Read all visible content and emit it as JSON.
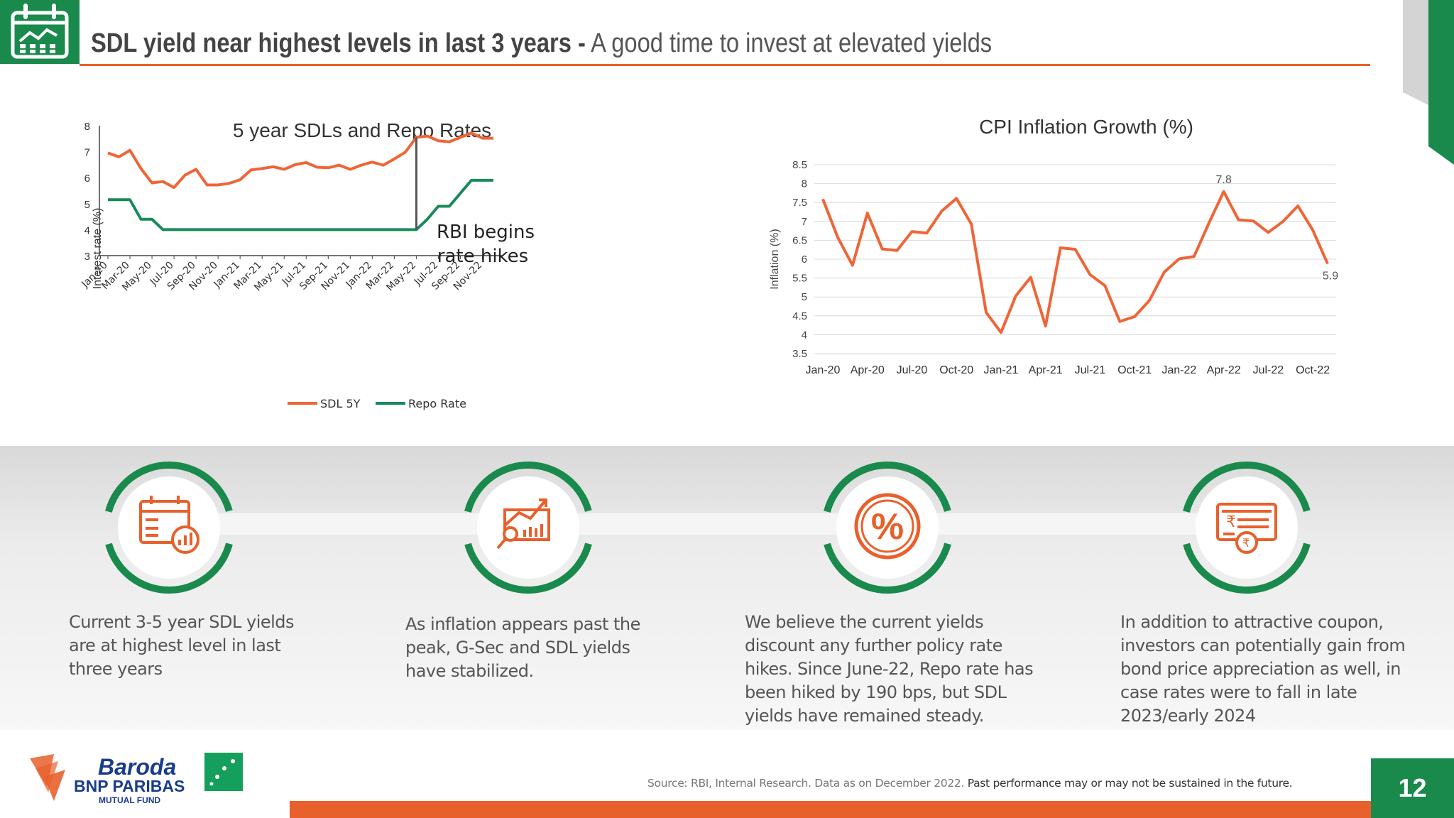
{
  "header": {
    "title_bold": "SDL yield near highest levels in last 3 years -",
    "title_light": "A good time to invest at elevated yields"
  },
  "colors": {
    "brand_green": "#1a8a4c",
    "brand_orange": "#e8602c"
  },
  "chart_data": [
    {
      "type": "line",
      "title": "5 year SDLs and Repo Rates",
      "ylabel": "Interest rate (%)",
      "xlabel": "",
      "ylim": [
        3,
        8
      ],
      "yticks": [
        3,
        4,
        5,
        6,
        7,
        8
      ],
      "x": [
        "Jan-20",
        "Feb-20",
        "Mar-20",
        "Apr-20",
        "May-20",
        "Jun-20",
        "Jul-20",
        "Aug-20",
        "Sep-20",
        "Oct-20",
        "Nov-20",
        "Dec-20",
        "Jan-21",
        "Feb-21",
        "Mar-21",
        "Apr-21",
        "May-21",
        "Jun-21",
        "Jul-21",
        "Aug-21",
        "Sep-21",
        "Oct-21",
        "Nov-21",
        "Dec-21",
        "Jan-22",
        "Feb-22",
        "Mar-22",
        "Apr-22",
        "May-22",
        "Jun-22",
        "Jul-22",
        "Aug-22",
        "Sep-22",
        "Oct-22",
        "Nov-22",
        "Dec-22"
      ],
      "xticks": [
        "Jan-20",
        "Mar-20",
        "May-20",
        "Jul-20",
        "Sep-20",
        "Nov-20",
        "Jan-21",
        "Mar-21",
        "May-21",
        "Jul-21",
        "Sep-21",
        "Nov-21",
        "Jan-22",
        "Mar-22",
        "May-22",
        "Jul-22",
        "Sep-22",
        "Nov-22"
      ],
      "series": [
        {
          "name": "SDL 5Y",
          "color": "#ef6537",
          "values": [
            6.95,
            6.8,
            7.05,
            6.35,
            5.8,
            5.85,
            5.62,
            6.1,
            6.32,
            5.72,
            5.72,
            5.78,
            5.92,
            6.3,
            6.35,
            6.42,
            6.32,
            6.5,
            6.58,
            6.4,
            6.38,
            6.48,
            6.32,
            6.48,
            6.6,
            6.48,
            6.72,
            6.98,
            7.55,
            7.6,
            7.42,
            7.38,
            7.55,
            7.72,
            7.52,
            7.52
          ]
        },
        {
          "name": "Repo Rate",
          "color": "#1a8a5a",
          "values": [
            5.15,
            5.15,
            5.15,
            4.4,
            4.4,
            4.0,
            4.0,
            4.0,
            4.0,
            4.0,
            4.0,
            4.0,
            4.0,
            4.0,
            4.0,
            4.0,
            4.0,
            4.0,
            4.0,
            4.0,
            4.0,
            4.0,
            4.0,
            4.0,
            4.0,
            4.0,
            4.0,
            4.0,
            4.0,
            4.4,
            4.9,
            4.9,
            5.4,
            5.9,
            5.9,
            5.9
          ]
        }
      ],
      "annotation": {
        "line1": "RBI begins",
        "line2": "rate hikes",
        "at_index": 28
      },
      "legend": "bottom"
    },
    {
      "type": "line",
      "title": "CPI Inflation Growth (%)",
      "ylabel": "Inflation (%)",
      "xlabel": "",
      "ylim": [
        3.5,
        8.5
      ],
      "yticks": [
        3.5,
        4,
        4.5,
        5,
        5.5,
        6,
        6.5,
        7,
        7.5,
        8,
        8.5
      ],
      "x": [
        "Jan-20",
        "Feb-20",
        "Mar-20",
        "Apr-20",
        "May-20",
        "Jun-20",
        "Jul-20",
        "Aug-20",
        "Sep-20",
        "Oct-20",
        "Nov-20",
        "Dec-20",
        "Jan-21",
        "Feb-21",
        "Mar-21",
        "Apr-21",
        "May-21",
        "Jun-21",
        "Jul-21",
        "Aug-21",
        "Sep-21",
        "Oct-21",
        "Nov-21",
        "Dec-21",
        "Jan-22",
        "Feb-22",
        "Mar-22",
        "Apr-22",
        "May-22",
        "Jun-22",
        "Jul-22",
        "Aug-22",
        "Sep-22",
        "Oct-22",
        "Nov-22"
      ],
      "xticks": [
        "Jan-20",
        "Apr-20",
        "Jul-20",
        "Oct-20",
        "Jan-21",
        "Apr-21",
        "Jul-21",
        "Oct-21",
        "Jan-22",
        "Apr-22",
        "Jul-22",
        "Oct-22"
      ],
      "series": [
        {
          "name": "CPI Inflation",
          "color": "#ef6537",
          "values": [
            7.59,
            6.58,
            5.84,
            7.22,
            6.27,
            6.23,
            6.73,
            6.69,
            7.27,
            7.61,
            6.93,
            4.59,
            4.06,
            5.03,
            5.52,
            4.23,
            6.3,
            6.26,
            5.59,
            5.3,
            4.35,
            4.48,
            4.91,
            5.66,
            6.01,
            6.07,
            6.95,
            7.79,
            7.04,
            7.01,
            6.71,
            7.0,
            7.41,
            6.77,
            5.88
          ]
        }
      ],
      "data_labels": [
        {
          "index": 27,
          "text": "7.8"
        },
        {
          "index": 34,
          "text": "5.9"
        }
      ],
      "legend": "none"
    }
  ],
  "features": [
    {
      "icon": "calendar-chart-icon",
      "text": "Current 3-5 year SDL yields are at highest level in last three years"
    },
    {
      "icon": "growth-chart-icon",
      "text": "As inflation appears past the peak, G-Sec and SDL yields have stabilized."
    },
    {
      "icon": "percent-icon",
      "text": "We believe the current yields discount any further policy rate hikes. Since June-22, Repo rate has been hiked by 190 bps, but SDL yields have remained steady."
    },
    {
      "icon": "rupee-cheque-icon",
      "text": "In addition to attractive coupon, investors can potentially gain from bond price appreciation as well, in case rates were to fall in late 2023/early 2024"
    }
  ],
  "footer": {
    "logo_name": "Baroda",
    "logo_sub": "BNP PARIBAS",
    "logo_tag": "MUTUAL FUND",
    "source": "Source: RBI, Internal Research. Data as on December 2022.",
    "note": "Past performance may or may not be sustained in the future.",
    "page_number": "12"
  }
}
